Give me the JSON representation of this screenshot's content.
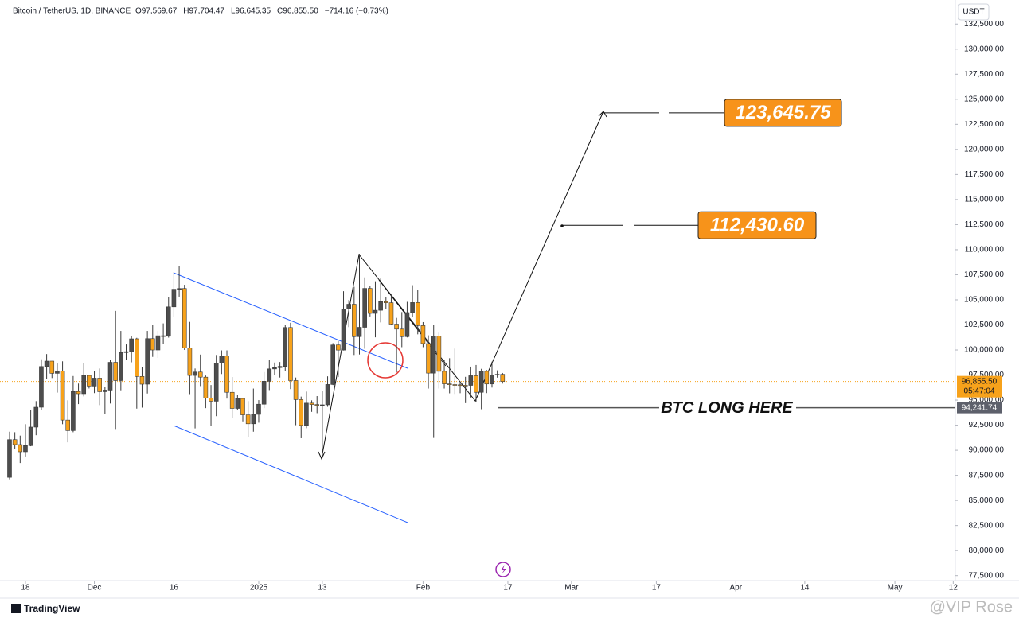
{
  "chart_data": {
    "type": "candlestick",
    "title": "Bitcoin / TetherUS, 1D, BINANCE",
    "header_values": [
      "O97,569.67",
      "H97,704.47",
      "L96,645.35",
      "C96,855.50",
      "−714.16 (−0.73%)"
    ],
    "currency": "USDT",
    "up_color": "#4d4d4d",
    "down_color": "#f7a21b",
    "grid": false,
    "x": [
      0,
      1,
      2,
      3,
      4,
      5,
      6,
      7,
      8,
      9,
      10,
      11,
      12,
      13,
      14,
      15,
      16,
      17,
      18,
      19,
      20,
      21,
      22,
      23,
      24,
      25,
      26,
      27,
      28,
      29,
      30,
      31,
      32,
      33,
      34,
      35,
      36,
      37,
      38,
      39,
      40,
      41,
      42,
      43,
      44,
      45,
      46,
      47,
      48,
      49,
      50,
      51,
      52,
      53,
      54,
      55,
      56,
      57,
      58,
      59,
      60,
      61,
      62,
      63,
      64,
      65,
      66,
      67,
      68,
      69,
      70,
      71,
      72,
      73,
      74,
      75,
      76,
      77,
      78,
      79,
      80,
      81,
      82,
      83,
      84,
      85,
      86,
      87,
      88,
      89,
      90,
      91,
      92,
      93
    ],
    "open": [
      87300,
      91060,
      90560,
      89850,
      90460,
      92310,
      94290,
      98350,
      98890,
      97670,
      97900,
      93010,
      91960,
      95860,
      95640,
      97460,
      96400,
      97190,
      95840,
      96000,
      98770,
      96950,
      99740,
      99830,
      101110,
      97360,
      96590,
      101130,
      100000,
      101420,
      101370,
      104300,
      106060,
      106130,
      100200,
      97460,
      97800,
      97290,
      95190,
      94890,
      98680,
      99390,
      95780,
      94170,
      95160,
      93530,
      92640,
      93580,
      94590,
      96880,
      98110,
      98240,
      98360,
      102240,
      96950,
      95050,
      92480,
      94700,
      94560,
      94520,
      94530,
      96560,
      100500,
      99990,
      104080,
      104560,
      101330,
      102260,
      106140,
      103650,
      103960,
      104820,
      104710,
      102580,
      102080,
      101330,
      103730,
      104730,
      102430,
      100640,
      97690,
      101400,
      97870,
      96620,
      96550,
      96530,
      96480,
      96470,
      97430,
      95780,
      97870,
      96610,
      97510,
      97569.67
    ],
    "high": [
      91850,
      91800,
      91460,
      92600,
      94000,
      94900,
      99070,
      99590,
      98900,
      98650,
      98870,
      94980,
      97400,
      96650,
      98700,
      97500,
      97900,
      98150,
      96300,
      99000,
      103900,
      101900,
      100550,
      101400,
      101210,
      98270,
      101900,
      102540,
      101900,
      102650,
      105250,
      107780,
      108350,
      106500,
      102800,
      98150,
      99540,
      97450,
      96500,
      99500,
      99960,
      99960,
      97300,
      95520,
      95170,
      94900,
      96150,
      95000,
      97800,
      98980,
      98750,
      98800,
      102480,
      102710,
      97250,
      95350,
      95850,
      94980,
      95400,
      95900,
      97370,
      100680,
      100870,
      105860,
      104990,
      106300,
      109590,
      107240,
      106390,
      106850,
      107120,
      105290,
      105480,
      103200,
      103780,
      104800,
      106460,
      106000,
      102780,
      101460,
      102500,
      101730,
      99000,
      99180,
      100140,
      96880,
      97320,
      98340,
      98500,
      98120,
      98000,
      98830,
      97970,
      97704.47
    ],
    "low": [
      87100,
      90100,
      88730,
      89380,
      90400,
      91500,
      94000,
      97120,
      97200,
      95750,
      92600,
      90790,
      91800,
      94600,
      95370,
      96160,
      95700,
      94500,
      93580,
      94660,
      92120,
      95980,
      98970,
      98770,
      94150,
      94250,
      95660,
      99310,
      99200,
      100610,
      101230,
      103330,
      105320,
      100000,
      95600,
      92180,
      96400,
      94200,
      92400,
      93400,
      97600,
      95150,
      93250,
      94000,
      92880,
      91300,
      91850,
      92750,
      94200,
      96000,
      97500,
      97250,
      97900,
      96100,
      92500,
      91200,
      92200,
      93830,
      93700,
      89260,
      94330,
      96500,
      97300,
      99950,
      102280,
      99500,
      99550,
      100120,
      103340,
      101260,
      102750,
      104110,
      102460,
      97780,
      100280,
      101250,
      103300,
      101560,
      100280,
      96150,
      91230,
      96150,
      96150,
      95680,
      95620,
      95690,
      94700,
      95260,
      94850,
      94090,
      95700,
      96250,
      97240,
      96645.35
    ],
    "close": [
      91060,
      90560,
      89850,
      90460,
      92310,
      94290,
      98350,
      98890,
      97670,
      97900,
      93010,
      91960,
      95860,
      95640,
      97460,
      96400,
      97190,
      95840,
      96000,
      98770,
      96950,
      99740,
      99830,
      101110,
      97360,
      96590,
      101130,
      100000,
      101420,
      101370,
      104300,
      106060,
      106130,
      100200,
      97460,
      97800,
      97290,
      95190,
      94890,
      98680,
      99390,
      95780,
      94170,
      95160,
      93530,
      92640,
      93580,
      94590,
      96880,
      98110,
      98240,
      98360,
      102240,
      96950,
      95050,
      92480,
      94700,
      94560,
      94520,
      94530,
      96560,
      100500,
      99990,
      104080,
      104560,
      101330,
      102260,
      106140,
      103650,
      103960,
      104820,
      104710,
      102580,
      102080,
      101330,
      103730,
      104730,
      102430,
      100640,
      97690,
      101400,
      97870,
      96620,
      96550,
      96530,
      96480,
      96470,
      97430,
      95780,
      97870,
      96610,
      97510,
      97569.67,
      96855.5
    ],
    "xlim": [
      -1.8,
      178.4
    ],
    "xticks": [
      {
        "value": 3,
        "label": "18"
      },
      {
        "value": 16,
        "label": "Dec"
      },
      {
        "value": 31,
        "label": "16"
      },
      {
        "value": 47,
        "label": "2025"
      },
      {
        "value": 59,
        "label": "13"
      },
      {
        "value": 78,
        "label": "Feb"
      },
      {
        "value": 94,
        "label": "17"
      },
      {
        "value": 106,
        "label": "Mar"
      },
      {
        "value": 122,
        "label": "17"
      },
      {
        "value": 137,
        "label": "Apr"
      },
      {
        "value": 150,
        "label": "14"
      },
      {
        "value": 167,
        "label": "May"
      },
      {
        "value": 178,
        "label": "12"
      }
    ],
    "ylim": [
      77000,
      134900
    ],
    "yticks": [
      {
        "value": 77500,
        "label": "77,500.00"
      },
      {
        "value": 80000,
        "label": "80,000.00"
      },
      {
        "value": 82500,
        "label": "82,500.00"
      },
      {
        "value": 85000,
        "label": "85,000.00"
      },
      {
        "value": 87500,
        "label": "87,500.00"
      },
      {
        "value": 90000,
        "label": "90,000.00"
      },
      {
        "value": 92500,
        "label": "92,500.00"
      },
      {
        "value": 95000,
        "label": "95,000.00"
      },
      {
        "value": 97500,
        "label": "97,500.00"
      },
      {
        "value": 100000,
        "label": "100,000.00"
      },
      {
        "value": 102500,
        "label": "102,500.00"
      },
      {
        "value": 105000,
        "label": "105,000.00"
      },
      {
        "value": 107500,
        "label": "107,500.00"
      },
      {
        "value": 110000,
        "label": "110,000.00"
      },
      {
        "value": 112500,
        "label": "112,500.00"
      },
      {
        "value": 115000,
        "label": "115,000.00"
      },
      {
        "value": 117500,
        "label": "117,500.00"
      },
      {
        "value": 120000,
        "label": "120,000.00"
      },
      {
        "value": 122500,
        "label": "122,500.00"
      },
      {
        "value": 125000,
        "label": "125,000.00"
      },
      {
        "value": 127500,
        "label": "127,500.00"
      },
      {
        "value": 130000,
        "label": "130,000.00"
      },
      {
        "value": 132500,
        "label": "132,500.00"
      }
    ],
    "levels": [
      {
        "value": 123645.75,
        "label": "123,645.75"
      },
      {
        "value": 112430.6,
        "label": "112,430.60"
      }
    ],
    "long_entry": {
      "value": 94241.74,
      "label": "94,241.74",
      "text": "BTC LONG HERE"
    },
    "last_price": {
      "value": 96855.5,
      "label": "96,855.50",
      "countdown": "05:47:04"
    },
    "brand": "TradingView",
    "watermark": "@VIP Rose"
  }
}
